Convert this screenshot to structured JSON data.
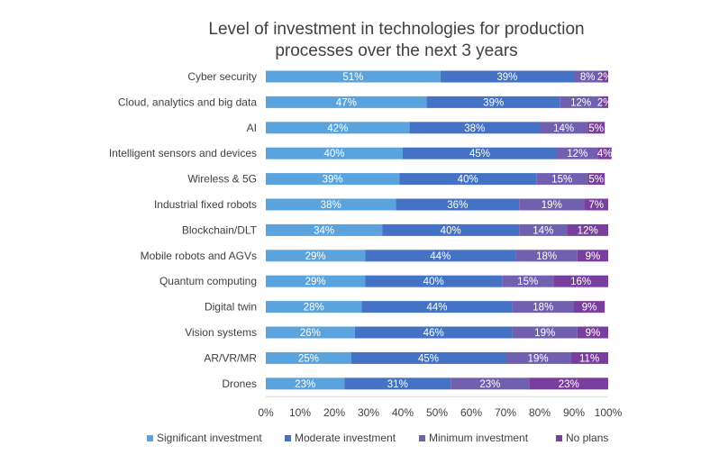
{
  "chart_data": {
    "type": "bar",
    "orientation": "horizontal",
    "stacked": true,
    "title": "Level of investment in technologies for production processes over the next 3 years",
    "title_lines": [
      "Level of investment in technologies for production",
      "processes over the next 3 years"
    ],
    "categories": [
      "Cyber security",
      "Cloud, analytics and big data",
      "AI",
      "Intelligent sensors and devices",
      "Wireless & 5G",
      "Industrial fixed robots",
      "Blockchain/DLT",
      "Mobile robots and AGVs",
      "Quantum computing",
      "Digital twin",
      "Vision systems",
      "AR/VR/MR",
      "Drones"
    ],
    "series": [
      {
        "name": "Significant investment",
        "color": "#5ba3dc",
        "values": [
          51,
          47,
          42,
          40,
          39,
          38,
          34,
          29,
          29,
          28,
          26,
          25,
          23
        ]
      },
      {
        "name": "Moderate investment",
        "color": "#4472c4",
        "values": [
          39,
          39,
          38,
          45,
          40,
          36,
          40,
          44,
          40,
          44,
          46,
          45,
          31
        ]
      },
      {
        "name": "Minimum investment",
        "color": "#7160b0",
        "values": [
          8,
          12,
          14,
          12,
          15,
          19,
          14,
          18,
          15,
          18,
          19,
          19,
          23
        ]
      },
      {
        "name": "No plans",
        "color": "#7a3f9e",
        "values": [
          2,
          2,
          5,
          4,
          5,
          7,
          12,
          9,
          16,
          9,
          9,
          11,
          23
        ]
      }
    ],
    "xlim": [
      0,
      100
    ],
    "xticks": [
      "0%",
      "10%",
      "20%",
      "30%",
      "40%",
      "50%",
      "60%",
      "70%",
      "80%",
      "90%",
      "100%"
    ],
    "value_suffix": "%",
    "grid": false,
    "legend_position": "bottom"
  }
}
